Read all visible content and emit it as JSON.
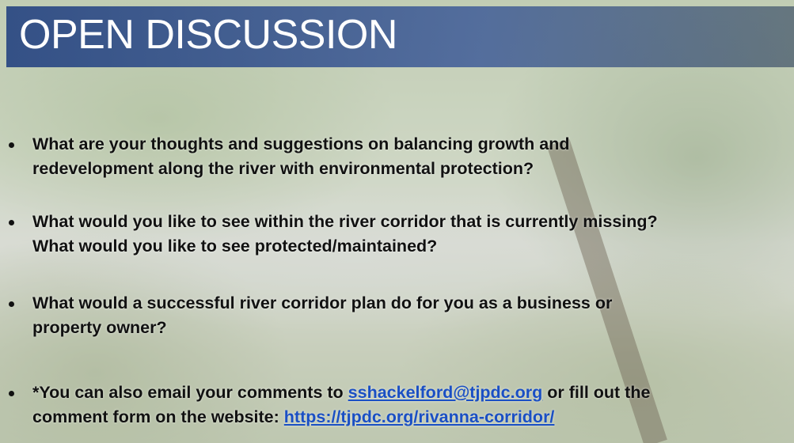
{
  "title": "OPEN DISCUSSION",
  "bullets": [
    {
      "lines": [
        "What are your thoughts and suggestions on balancing growth and",
        "redevelopment along the river with environmental protection?"
      ]
    },
    {
      "lines": [
        "What would you like to see within the river corridor that is currently missing?",
        "What would you like to see protected/maintained?"
      ]
    },
    {
      "lines": [
        "What would a successful river corridor plan do for you as a business or",
        "property owner?"
      ]
    }
  ],
  "note": {
    "line1": {
      "before": "*You can also email your comments to",
      "link": "sshackelford@tjpdc.org",
      "after": "or fill out the"
    },
    "line2": {
      "before": "comment form on the website:",
      "link": "https://tjpdc.org/rivanna-corridor/"
    }
  }
}
